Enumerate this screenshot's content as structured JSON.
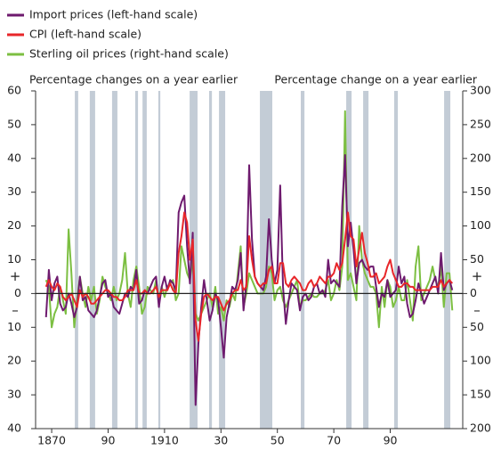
{
  "chart_data": {
    "type": "line",
    "subtitle_left": "Percentage changes on a year earlier",
    "subtitle_right": "Percentage change on a year earlier",
    "sign_labels": [
      "+",
      "–"
    ],
    "x": [
      1868,
      1869,
      1870,
      1871,
      1872,
      1873,
      1874,
      1875,
      1876,
      1877,
      1878,
      1879,
      1880,
      1881,
      1882,
      1883,
      1884,
      1885,
      1886,
      1887,
      1888,
      1889,
      1890,
      1891,
      1892,
      1893,
      1894,
      1895,
      1896,
      1897,
      1898,
      1899,
      1900,
      1901,
      1902,
      1903,
      1904,
      1905,
      1906,
      1907,
      1908,
      1909,
      1910,
      1911,
      1912,
      1913,
      1914,
      1915,
      1916,
      1917,
      1918,
      1919,
      1920,
      1921,
      1922,
      1923,
      1924,
      1925,
      1926,
      1927,
      1928,
      1929,
      1930,
      1931,
      1932,
      1933,
      1934,
      1935,
      1936,
      1937,
      1938,
      1939,
      1940,
      1941,
      1942,
      1943,
      1944,
      1945,
      1946,
      1947,
      1948,
      1949,
      1950,
      1951,
      1952,
      1953,
      1954,
      1955,
      1956,
      1957,
      1958,
      1959,
      1960,
      1961,
      1962,
      1963,
      1964,
      1965,
      1966,
      1967,
      1968,
      1969,
      1970,
      1971,
      1972,
      1973,
      1974,
      1975,
      1976,
      1977,
      1978,
      1979,
      1980,
      1981,
      1982,
      1983,
      1984,
      1985,
      1986,
      1987,
      1988,
      1989,
      1990,
      1991,
      1992,
      1993,
      1994,
      1995,
      1996,
      1997,
      1998,
      1999,
      2000,
      2001,
      2002,
      2003,
      2004,
      2005,
      2006,
      2007,
      2008,
      2009,
      2010,
      2011,
      2012
    ],
    "series": [
      {
        "name": "Import prices (left-hand scale)",
        "color": "#6e1a6e",
        "axis": "y",
        "values": [
          -7,
          7,
          -2,
          3,
          5,
          -3,
          -5,
          -4,
          0,
          -3,
          -7,
          -4,
          5,
          -2,
          -1,
          -5,
          -6,
          -7,
          -5,
          -1,
          3,
          4,
          -1,
          0,
          -4,
          -5,
          -6,
          -3,
          0,
          -1,
          2,
          1,
          7,
          -3,
          -2,
          1,
          0,
          2,
          4,
          5,
          -4,
          2,
          5,
          1,
          4,
          3,
          1,
          24,
          27,
          29,
          14,
          3,
          18,
          -33,
          -15,
          -4,
          4,
          -2,
          -8,
          -5,
          0,
          -2,
          -10,
          -19,
          -7,
          -3,
          2,
          1,
          4,
          12,
          -5,
          3,
          38,
          16,
          5,
          3,
          2,
          1,
          5,
          22,
          10,
          3,
          7,
          32,
          2,
          -9,
          -2,
          3,
          2,
          1,
          -5,
          -1,
          0,
          -2,
          -1,
          2,
          3,
          0,
          1,
          -1,
          10,
          3,
          4,
          3,
          2,
          26,
          41,
          14,
          21,
          13,
          3,
          9,
          10,
          8,
          7,
          8,
          8,
          2,
          -4,
          0,
          -1,
          4,
          -1,
          0,
          1,
          8,
          3,
          5,
          -3,
          -7,
          -6,
          -2,
          3,
          0,
          -3,
          -1,
          1,
          3,
          5,
          0,
          12,
          1,
          3,
          4,
          1
        ]
      },
      {
        "name": "CPI (left-hand scale)",
        "color": "#e8262a",
        "axis": "y",
        "values": [
          2,
          4,
          2,
          1,
          3,
          2,
          -1,
          -2,
          -1,
          0,
          -2,
          -4,
          1,
          -1,
          0,
          -1,
          -3,
          -3,
          -2,
          -1,
          0,
          1,
          1,
          0,
          -1,
          -1,
          -2,
          -2,
          -1,
          1,
          1,
          1,
          4,
          0,
          0,
          1,
          0,
          0,
          1,
          2,
          -1,
          1,
          1,
          1,
          3,
          1,
          0,
          12,
          17,
          24,
          21,
          10,
          16,
          -8,
          -14,
          -6,
          -1,
          0,
          -1,
          -2,
          -1,
          -1,
          -3,
          -5,
          -3,
          -2,
          0,
          1,
          1,
          4,
          1,
          2,
          17,
          10,
          5,
          3,
          2,
          3,
          3,
          7,
          8,
          3,
          3,
          9,
          9,
          3,
          2,
          4,
          5,
          4,
          3,
          1,
          1,
          3,
          4,
          2,
          3,
          5,
          4,
          3,
          5,
          5,
          6,
          9,
          7,
          9,
          16,
          24,
          17,
          16,
          8,
          13,
          18,
          12,
          9,
          5,
          5,
          6,
          3,
          4,
          5,
          8,
          10,
          6,
          4,
          2,
          2,
          3,
          3,
          2,
          2,
          1,
          1,
          1,
          1,
          1,
          1,
          2,
          2,
          2,
          4,
          2,
          3,
          4,
          3
        ]
      },
      {
        "name": "Sterling oil prices (right-hand scale)",
        "color": "#7cbf42",
        "axis": "y2",
        "values": [
          20,
          10,
          -50,
          -30,
          -20,
          10,
          -10,
          -30,
          95,
          30,
          -50,
          -10,
          25,
          0,
          -20,
          10,
          -10,
          10,
          -30,
          -10,
          25,
          10,
          0,
          -10,
          10,
          -10,
          0,
          20,
          60,
          0,
          -20,
          20,
          40,
          10,
          -30,
          -20,
          10,
          5,
          0,
          20,
          -10,
          10,
          -5,
          10,
          15,
          20,
          -10,
          0,
          70,
          50,
          30,
          20,
          50,
          -30,
          -40,
          -30,
          -20,
          -10,
          0,
          -20,
          10,
          -30,
          -20,
          -40,
          -10,
          -20,
          0,
          -10,
          30,
          70,
          -20,
          0,
          30,
          20,
          10,
          0,
          0,
          0,
          10,
          40,
          30,
          -10,
          5,
          10,
          -10,
          -20,
          -10,
          0,
          10,
          20,
          -20,
          -10,
          -10,
          -5,
          0,
          -5,
          -5,
          0,
          0,
          5,
          20,
          -10,
          0,
          20,
          5,
          40,
          270,
          20,
          30,
          10,
          -10,
          100,
          50,
          30,
          20,
          10,
          10,
          0,
          -50,
          10,
          -20,
          20,
          10,
          -20,
          -10,
          10,
          -10,
          -10,
          20,
          -10,
          -40,
          40,
          70,
          -10,
          0,
          10,
          20,
          40,
          20,
          10,
          40,
          -20,
          30,
          30,
          -25
        ]
      }
    ],
    "shaded_periods": [
      [
        1878.2,
        1879.4
      ],
      [
        1883.5,
        1885.4
      ],
      [
        1891.4,
        1893.3
      ],
      [
        1899.6,
        1900.6
      ],
      [
        1902.2,
        1903.7
      ],
      [
        1907.8,
        1908.5
      ],
      [
        1918.9,
        1921.7
      ],
      [
        1925.8,
        1926.8
      ],
      [
        1929.3,
        1931.5
      ],
      [
        1943.8,
        1948.2
      ],
      [
        1958.3,
        1959.6
      ],
      [
        1974.4,
        1976.3
      ],
      [
        1980.4,
        1982.3
      ],
      [
        1991.4,
        1992.7
      ],
      [
        2009.1,
        2011.3
      ]
    ],
    "shade_color": "#c3ccd6",
    "xlim": [
      1864.3,
      2015.7
    ],
    "xticks": [
      {
        "value": 1870,
        "label": "1870"
      },
      {
        "value": 1890,
        "label": "90"
      },
      {
        "value": 1910,
        "label": "1910"
      },
      {
        "value": 1930,
        "label": "30"
      },
      {
        "value": 1950,
        "label": "50"
      },
      {
        "value": 1970,
        "label": "70"
      },
      {
        "value": 1990,
        "label": "90"
      }
    ],
    "ylim": [
      -40,
      60
    ],
    "yticks": [
      60,
      50,
      40,
      30,
      20,
      10,
      0,
      {
        "value": -10,
        "label": "10"
      },
      {
        "value": -20,
        "label": "20"
      },
      {
        "value": -30,
        "label": "30"
      },
      {
        "value": -40,
        "label": "40"
      }
    ],
    "y2lim": [
      -200,
      300
    ],
    "y2ticks": [
      300,
      250,
      200,
      150,
      100,
      50,
      0,
      {
        "value": -50,
        "label": "50"
      },
      {
        "value": -100,
        "label": "100"
      },
      {
        "value": -150,
        "label": "150"
      },
      {
        "value": -200,
        "label": "200"
      }
    ]
  }
}
